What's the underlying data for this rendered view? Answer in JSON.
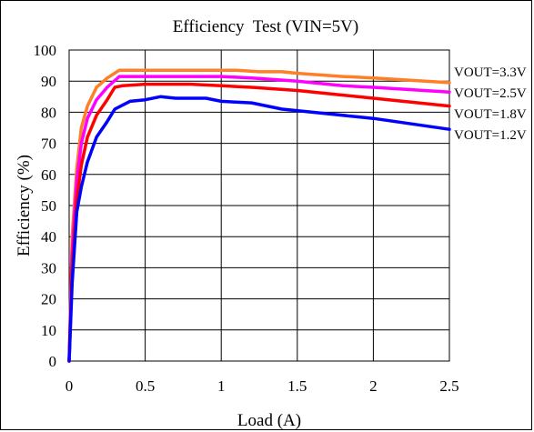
{
  "chart_data": {
    "type": "line",
    "title": "Efficiency  Test (VIN=5V)",
    "xlabel": "Load (A)",
    "ylabel": "Efficiency (%)",
    "xlim": [
      0,
      2.5
    ],
    "ylim": [
      0,
      100
    ],
    "x_ticks": [
      "0",
      "0.5",
      "1",
      "1.5",
      "2",
      "2.5"
    ],
    "y_ticks": [
      "0",
      "10",
      "20",
      "30",
      "40",
      "50",
      "60",
      "70",
      "80",
      "90",
      "100"
    ],
    "grid": true,
    "series": [
      {
        "name": "VOUT=3.3V",
        "color": "#ff7f27",
        "points": [
          [
            0,
            0
          ],
          [
            0.02,
            40
          ],
          [
            0.05,
            62
          ],
          [
            0.08,
            75
          ],
          [
            0.12,
            82
          ],
          [
            0.18,
            88
          ],
          [
            0.25,
            91
          ],
          [
            0.33,
            93.5
          ],
          [
            0.5,
            93.5
          ],
          [
            0.8,
            93.5
          ],
          [
            1.0,
            93.5
          ],
          [
            1.1,
            93.5
          ],
          [
            1.25,
            93
          ],
          [
            1.4,
            93
          ],
          [
            1.5,
            92.5
          ],
          [
            1.8,
            91.5
          ],
          [
            2.0,
            91
          ],
          [
            2.5,
            89.5
          ]
        ]
      },
      {
        "name": "VOUT=2.5V",
        "color": "#ff00ff",
        "points": [
          [
            0,
            0
          ],
          [
            0.02,
            35
          ],
          [
            0.05,
            58
          ],
          [
            0.08,
            70
          ],
          [
            0.12,
            78
          ],
          [
            0.18,
            84
          ],
          [
            0.25,
            88
          ],
          [
            0.33,
            91.5
          ],
          [
            0.5,
            91.5
          ],
          [
            0.8,
            91.5
          ],
          [
            1.0,
            91.5
          ],
          [
            1.2,
            91
          ],
          [
            1.5,
            90
          ],
          [
            1.8,
            88.5
          ],
          [
            2.0,
            88
          ],
          [
            2.5,
            86.5
          ]
        ]
      },
      {
        "name": "VOUT=1.8V",
        "color": "#ff0000",
        "points": [
          [
            0,
            0
          ],
          [
            0.02,
            30
          ],
          [
            0.05,
            52
          ],
          [
            0.08,
            63
          ],
          [
            0.12,
            72
          ],
          [
            0.18,
            79
          ],
          [
            0.25,
            84
          ],
          [
            0.3,
            88
          ],
          [
            0.35,
            88.5
          ],
          [
            0.5,
            89
          ],
          [
            0.8,
            89
          ],
          [
            1.0,
            88.5
          ],
          [
            1.2,
            88
          ],
          [
            1.5,
            87
          ],
          [
            1.8,
            85.5
          ],
          [
            2.0,
            84.5
          ],
          [
            2.5,
            82
          ]
        ]
      },
      {
        "name": "VOUT=1.2V",
        "color": "#0000ff",
        "points": [
          [
            0,
            0
          ],
          [
            0.02,
            25
          ],
          [
            0.05,
            48
          ],
          [
            0.08,
            56
          ],
          [
            0.12,
            64
          ],
          [
            0.18,
            72
          ],
          [
            0.25,
            77
          ],
          [
            0.3,
            81
          ],
          [
            0.4,
            83.5
          ],
          [
            0.5,
            84
          ],
          [
            0.6,
            85
          ],
          [
            0.7,
            84.5
          ],
          [
            0.8,
            84.5
          ],
          [
            0.9,
            84.5
          ],
          [
            1.0,
            83.5
          ],
          [
            1.2,
            83
          ],
          [
            1.4,
            81
          ],
          [
            1.6,
            80
          ],
          [
            2.0,
            78
          ],
          [
            2.5,
            74.5
          ]
        ]
      }
    ]
  }
}
